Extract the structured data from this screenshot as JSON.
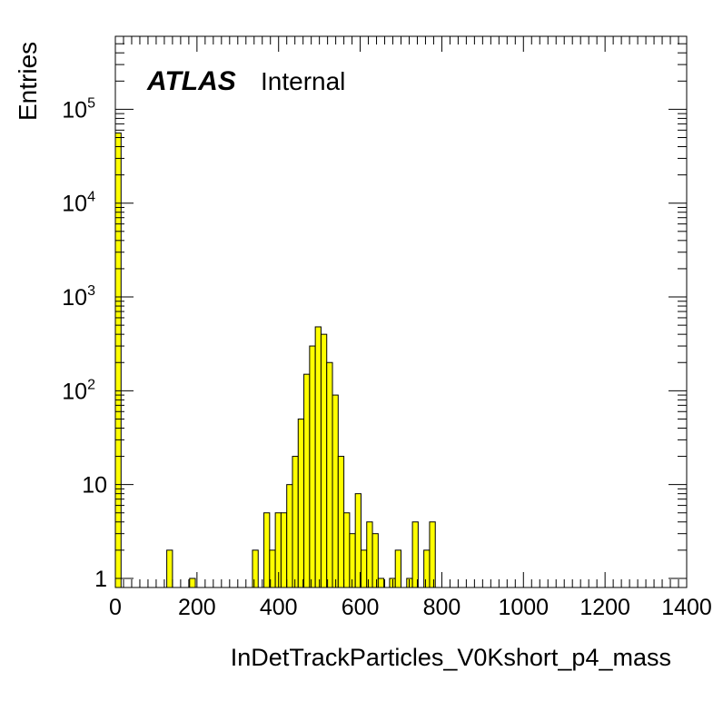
{
  "chart_data": {
    "type": "bar",
    "title": "",
    "xlabel": "InDetTrackParticles_V0Kshort_p4_mass",
    "ylabel": "Entries",
    "xlim": [
      0,
      1400
    ],
    "ylim": [
      0.8,
      600000
    ],
    "log_y": true,
    "grid": false,
    "fill_color": "#ffff00",
    "line_color": "#000000",
    "bin_width": 14,
    "x_ticks": [
      "0",
      "200",
      "400",
      "600",
      "800",
      "1000",
      "1200",
      "1400"
    ],
    "y_ticks": [
      {
        "base": "1",
        "exp": ""
      },
      {
        "base": "10",
        "exp": ""
      },
      {
        "base": "10",
        "exp": "2"
      },
      {
        "base": "10",
        "exp": "3"
      },
      {
        "base": "10",
        "exp": "4"
      },
      {
        "base": "10",
        "exp": "5"
      }
    ],
    "bins": [
      {
        "x": 0,
        "y": 56000
      },
      {
        "x": 126,
        "y": 2
      },
      {
        "x": 182,
        "y": 1
      },
      {
        "x": 336,
        "y": 2
      },
      {
        "x": 364,
        "y": 5
      },
      {
        "x": 378,
        "y": 2
      },
      {
        "x": 392,
        "y": 5
      },
      {
        "x": 406,
        "y": 5
      },
      {
        "x": 420,
        "y": 10
      },
      {
        "x": 434,
        "y": 20
      },
      {
        "x": 448,
        "y": 50
      },
      {
        "x": 462,
        "y": 150
      },
      {
        "x": 476,
        "y": 300
      },
      {
        "x": 490,
        "y": 480
      },
      {
        "x": 504,
        "y": 400
      },
      {
        "x": 518,
        "y": 200
      },
      {
        "x": 532,
        "y": 90
      },
      {
        "x": 546,
        "y": 20
      },
      {
        "x": 560,
        "y": 5
      },
      {
        "x": 574,
        "y": 3
      },
      {
        "x": 588,
        "y": 8
      },
      {
        "x": 602,
        "y": 2
      },
      {
        "x": 616,
        "y": 4
      },
      {
        "x": 630,
        "y": 3
      },
      {
        "x": 644,
        "y": 1
      },
      {
        "x": 672,
        "y": 1
      },
      {
        "x": 686,
        "y": 2
      },
      {
        "x": 714,
        "y": 1
      },
      {
        "x": 728,
        "y": 4
      },
      {
        "x": 756,
        "y": 2
      },
      {
        "x": 770,
        "y": 4
      }
    ]
  },
  "label": {
    "experiment": "ATLAS",
    "status": "Internal"
  }
}
